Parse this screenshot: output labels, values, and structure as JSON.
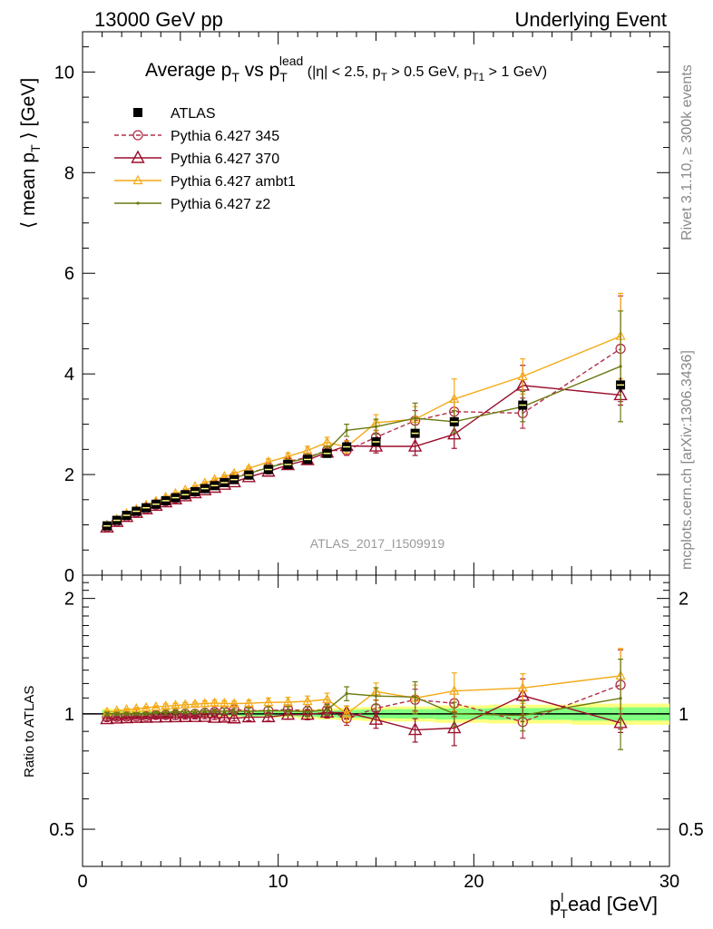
{
  "header": {
    "left": "13000 GeV pp",
    "right": "Underlying Event"
  },
  "side_labels": {
    "rivet": "Rivet 3.1.10, ≥ 300k events",
    "mcplots": "mcplots.cern.ch [arXiv:1306.3436]"
  },
  "watermark": "ATLAS_2017_I1509919",
  "title": {
    "main": "Average p",
    "main_sub": "T",
    "vs": "vs p",
    "vs_sub": "T",
    "vs_sup": "lead",
    "cuts": "(|η| < 2.5, p",
    "cuts_sub1": "T",
    "cuts_mid": "> 0.5 GeV, p",
    "cuts_sub2": "T1",
    "cuts_end": "> 1 GeV)"
  },
  "axes": {
    "ylabel_main": "⟨ mean p",
    "ylabel_main_sub": "T",
    "ylabel_main_end": "⟩ [GeV]",
    "ylabel_ratio": "Ratio to ATLAS",
    "xlabel": "p",
    "xlabel_sup": "l",
    "xlabel_sub": "T",
    "xlabel_end": "ead [GeV]",
    "main_yticks": [
      "0",
      "2",
      "4",
      "6",
      "8",
      "10"
    ],
    "ratio_yticks": [
      "0.5",
      "1",
      "2"
    ],
    "xticks": [
      "0",
      "10",
      "20",
      "30"
    ]
  },
  "colors": {
    "atlas": "#000000",
    "p345": "#b03048",
    "p370": "#9b0e2c",
    "ambt1": "#f4a915",
    "z2": "#6b7a12",
    "band_outer": "#ffff80",
    "band_inner": "#80ff80"
  },
  "legend": [
    {
      "key": "atlas",
      "label": "ATLAS",
      "marker": "square",
      "line": "none"
    },
    {
      "key": "p345",
      "label": "Pythia 6.427 345",
      "marker": "circle",
      "line": "dashed"
    },
    {
      "key": "p370",
      "label": "Pythia 6.427 370",
      "marker": "triangle",
      "line": "solid"
    },
    {
      "key": "ambt1",
      "label": "Pythia 6.427 ambt1",
      "marker": "triangle-small",
      "line": "solid"
    },
    {
      "key": "z2",
      "label": "Pythia 6.427 z2",
      "marker": "dot",
      "line": "solid"
    }
  ],
  "chart_data": {
    "type": "line",
    "xlim": [
      0,
      30
    ],
    "ylim_main": [
      0,
      10.8
    ],
    "ylim_ratio": [
      0.4,
      2.3
    ],
    "ratio_log": true,
    "x": [
      1.25,
      1.75,
      2.25,
      2.75,
      3.25,
      3.75,
      4.25,
      4.75,
      5.25,
      5.75,
      6.25,
      6.75,
      7.25,
      7.75,
      8.5,
      9.5,
      10.5,
      11.5,
      12.5,
      13.5,
      15.0,
      17.0,
      19.0,
      22.5,
      27.5
    ],
    "series": [
      {
        "key": "atlas",
        "name": "ATLAS",
        "values": [
          0.98,
          1.09,
          1.19,
          1.27,
          1.34,
          1.41,
          1.48,
          1.54,
          1.6,
          1.66,
          1.72,
          1.78,
          1.84,
          1.9,
          1.99,
          2.1,
          2.2,
          2.3,
          2.42,
          2.55,
          2.65,
          2.82,
          3.05,
          3.38,
          3.78
        ],
        "errors": [
          0.02,
          0.02,
          0.02,
          0.02,
          0.02,
          0.02,
          0.02,
          0.02,
          0.02,
          0.02,
          0.02,
          0.02,
          0.02,
          0.02,
          0.03,
          0.03,
          0.03,
          0.04,
          0.05,
          0.06,
          0.07,
          0.08,
          0.1,
          0.12,
          0.15
        ]
      },
      {
        "key": "p345",
        "name": "Pythia 6.427 345",
        "values": [
          0.96,
          1.07,
          1.17,
          1.25,
          1.32,
          1.4,
          1.47,
          1.53,
          1.6,
          1.66,
          1.73,
          1.8,
          1.87,
          1.95,
          2.03,
          2.14,
          2.26,
          2.34,
          2.48,
          2.48,
          2.74,
          3.07,
          3.25,
          3.22,
          4.5
        ],
        "errors": [
          0.01,
          0.01,
          0.01,
          0.01,
          0.01,
          0.01,
          0.01,
          0.02,
          0.02,
          0.02,
          0.02,
          0.02,
          0.03,
          0.03,
          0.04,
          0.05,
          0.06,
          0.07,
          0.09,
          0.1,
          0.14,
          0.2,
          0.25,
          0.3,
          1.05
        ]
      },
      {
        "key": "p370",
        "name": "Pythia 6.427 370",
        "values": [
          0.95,
          1.06,
          1.16,
          1.24,
          1.31,
          1.38,
          1.45,
          1.51,
          1.57,
          1.63,
          1.69,
          1.74,
          1.8,
          1.85,
          1.95,
          2.06,
          2.19,
          2.29,
          2.44,
          2.57,
          2.56,
          2.56,
          2.8,
          3.77,
          3.58
        ],
        "errors": [
          0.01,
          0.01,
          0.01,
          0.01,
          0.01,
          0.01,
          0.01,
          0.02,
          0.02,
          0.02,
          0.02,
          0.02,
          0.03,
          0.03,
          0.04,
          0.05,
          0.06,
          0.07,
          0.08,
          0.1,
          0.13,
          0.18,
          0.28,
          0.4,
          0.2
        ]
      },
      {
        "key": "ambt1",
        "name": "Pythia 6.427 ambt1",
        "values": [
          0.99,
          1.11,
          1.22,
          1.31,
          1.39,
          1.47,
          1.55,
          1.62,
          1.69,
          1.76,
          1.83,
          1.9,
          1.96,
          2.02,
          2.12,
          2.25,
          2.36,
          2.48,
          2.64,
          2.55,
          3.03,
          3.1,
          3.5,
          3.95,
          4.75
        ],
        "errors": [
          0.01,
          0.01,
          0.01,
          0.01,
          0.01,
          0.01,
          0.02,
          0.02,
          0.02,
          0.02,
          0.03,
          0.03,
          0.03,
          0.03,
          0.04,
          0.06,
          0.07,
          0.08,
          0.1,
          0.12,
          0.16,
          0.25,
          0.4,
          0.35,
          0.85
        ]
      },
      {
        "key": "z2",
        "name": "Pythia 6.427 z2",
        "values": [
          0.98,
          1.09,
          1.19,
          1.27,
          1.34,
          1.42,
          1.49,
          1.56,
          1.62,
          1.68,
          1.75,
          1.81,
          1.87,
          1.93,
          2.02,
          2.14,
          2.24,
          2.33,
          2.48,
          2.88,
          2.95,
          3.12,
          3.05,
          3.35,
          4.15
        ],
        "errors": [
          0.01,
          0.01,
          0.01,
          0.01,
          0.01,
          0.01,
          0.02,
          0.02,
          0.02,
          0.02,
          0.02,
          0.02,
          0.03,
          0.03,
          0.04,
          0.05,
          0.06,
          0.07,
          0.08,
          0.12,
          0.15,
          0.3,
          0.22,
          0.3,
          1.1
        ]
      }
    ]
  }
}
